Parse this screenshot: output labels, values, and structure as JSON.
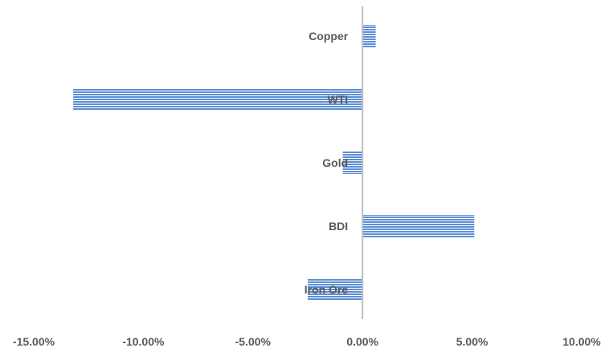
{
  "chart_data": {
    "type": "bar",
    "orientation": "horizontal",
    "title": "",
    "xlabel": "",
    "ylabel": "",
    "categories": [
      "Copper",
      "WTI",
      "Gold",
      "BDI",
      "Iron Ore"
    ],
    "values": [
      0.6,
      -13.2,
      -0.9,
      5.1,
      -2.5
    ],
    "xlim": [
      -15,
      10
    ],
    "x_ticks": [
      -15,
      -10,
      -5,
      0,
      5,
      10
    ],
    "x_tick_labels": [
      "-15.00%",
      "-10.00%",
      "-5.00%",
      "0.00%",
      "5.00%",
      "10.00%"
    ],
    "grid": false,
    "legend": "none",
    "colors": {
      "bar_fill": "#5b8ed6",
      "bar_hatch": "#ffffff",
      "axis": "#bfbfbf",
      "text": "#595959"
    }
  }
}
